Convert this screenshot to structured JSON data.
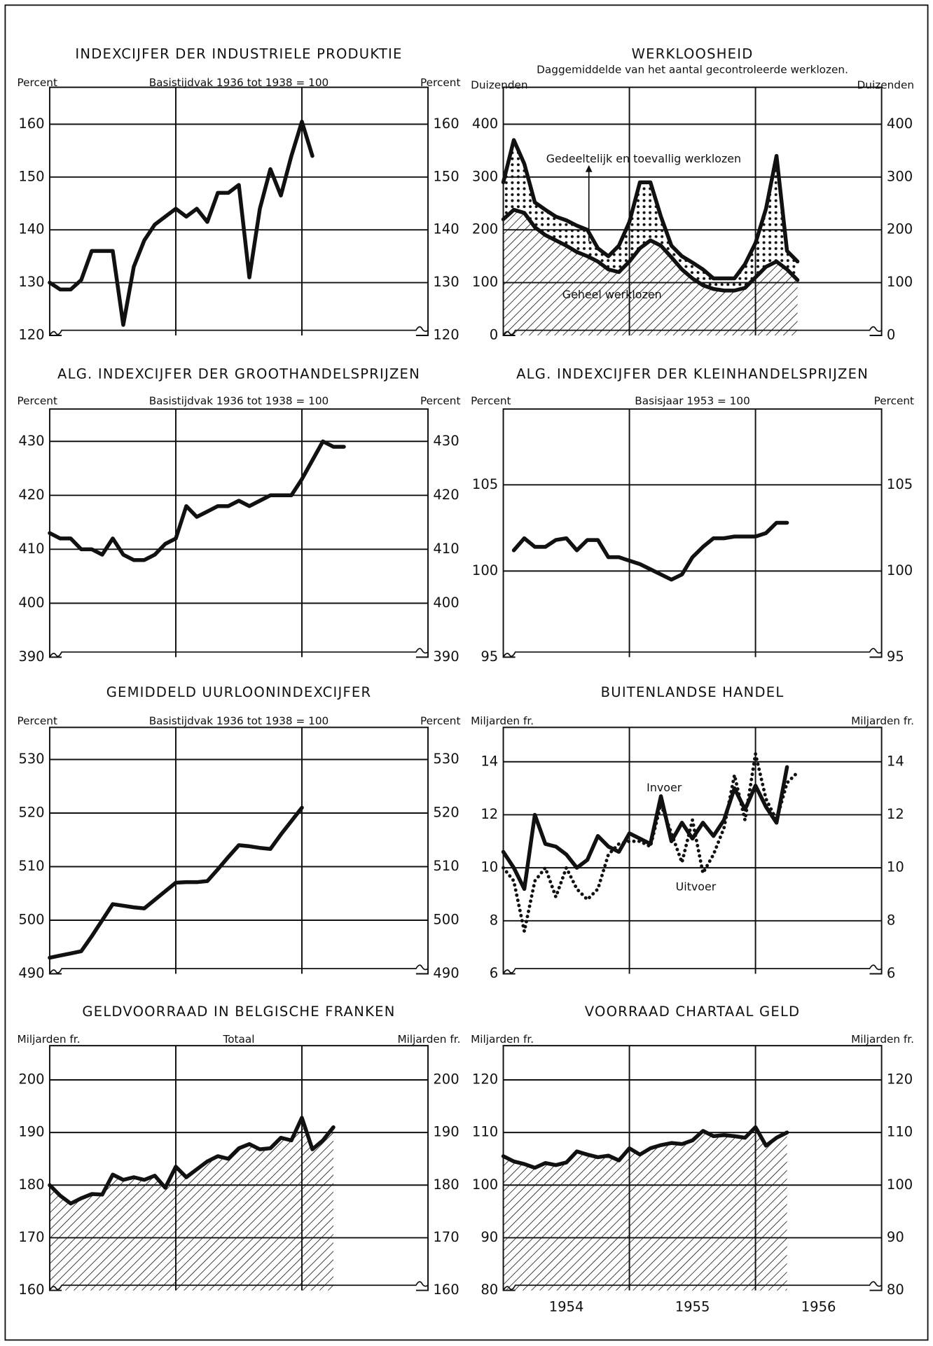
{
  "chart_data": [
    {
      "type": "line",
      "title": "INDEXCIJFER DER INDUSTRIELE PRODUKTIE",
      "subtitle": "Basistijdvak 1936 tot 1938 = 100",
      "ylabel": "Percent",
      "y2label": "Percent",
      "ylim": [
        120,
        167
      ],
      "yticks": [
        120,
        130,
        140,
        150,
        160
      ],
      "series": [
        {
          "color": "#111",
          "style": "solid",
          "values": [
            130,
            128.7,
            128.7,
            130.5,
            136,
            136,
            136,
            122,
            133,
            138,
            141,
            142.5,
            144,
            142.5,
            144,
            141.5,
            147,
            147,
            148.5,
            131,
            144,
            151.5,
            146.5,
            154,
            160.5,
            154
          ]
        }
      ]
    },
    {
      "type": "stacked-area",
      "title": "WERKLOOSHEID",
      "subtitle": "Daggemiddelde van het aantal gecontroleerde werklozen.",
      "ylabel": "Duizenden",
      "y2label": "Duizenden",
      "ylim": [
        0,
        470
      ],
      "yticks": [
        0,
        100,
        200,
        300,
        400
      ],
      "series": [
        {
          "name": "Geheel werklozen",
          "color": "#111",
          "fill": "hatch",
          "values": [
            220,
            238,
            232,
            205,
            190,
            180,
            170,
            158,
            150,
            140,
            125,
            120,
            140,
            165,
            180,
            170,
            148,
            125,
            108,
            95,
            88,
            85,
            85,
            90,
            110,
            130,
            140,
            125,
            105
          ]
        },
        {
          "name": "Gedeeltelijk en toevallig werklozen",
          "color": "#111",
          "fill": "dots",
          "values": [
            70,
            132,
            93,
            47,
            48,
            45,
            48,
            50,
            50,
            25,
            25,
            50,
            75,
            125,
            110,
            55,
            22,
            25,
            30,
            30,
            20,
            23,
            23,
            45,
            65,
            110,
            200,
            35,
            35
          ]
        }
      ]
    },
    {
      "type": "line",
      "title": "ALG. INDEXCIJFER DER GROOTHANDELSPRIJZEN",
      "subtitle": "Basistijdvak 1936 tot 1938 = 100",
      "ylabel": "Percent",
      "y2label": "Percent",
      "ylim": [
        390,
        436
      ],
      "yticks": [
        390,
        400,
        410,
        420,
        430
      ],
      "series": [
        {
          "color": "#111",
          "style": "solid",
          "values": [
            413,
            412,
            412,
            410,
            410,
            409,
            412,
            409,
            408,
            408,
            409,
            411,
            412,
            418,
            416,
            417,
            418,
            418,
            419,
            418,
            419,
            420,
            420,
            420,
            423,
            426.5,
            430,
            429,
            429
          ]
        }
      ]
    },
    {
      "type": "line",
      "title": "ALG. INDEXCIJFER DER KLEINHANDELSPRIJZEN",
      "subtitle": "Basisjaar 1953 = 100",
      "ylabel": "Percent",
      "y2label": "Percent",
      "ylim": [
        95,
        109.4
      ],
      "yticks": [
        95,
        100,
        105
      ],
      "series": [
        {
          "color": "#111",
          "style": "solid",
          "values": [
            null,
            101.2,
            101.9,
            101.4,
            101.4,
            101.8,
            101.9,
            101.2,
            101.8,
            101.8,
            100.8,
            100.8,
            100.6,
            100.4,
            100.1,
            99.8,
            99.5,
            99.8,
            100.8,
            101.4,
            101.9,
            101.9,
            102.0,
            102.0,
            102.0,
            102.2,
            102.8,
            102.8
          ]
        }
      ]
    },
    {
      "type": "line",
      "title": "GEMIDDELD UURLOONINDEXCIJFER",
      "subtitle": "Basistijdvak 1936 tot 1938 = 100",
      "ylabel": "Percent",
      "y2label": "Percent",
      "ylim": [
        490,
        536
      ],
      "yticks": [
        490,
        500,
        510,
        520,
        530
      ],
      "series": [
        {
          "color": "#111",
          "style": "solid",
          "values": [
            493,
            493.4,
            493.8,
            494.2,
            497,
            500,
            503,
            502.7,
            502.4,
            502.2,
            503.8,
            505.4,
            507,
            507.1,
            507.1,
            507.3,
            509.5,
            511.8,
            514,
            513.8,
            513.5,
            513.3,
            516,
            518.5,
            521
          ]
        }
      ]
    },
    {
      "type": "line",
      "title": "BUITENLANDSE HANDEL",
      "ylabel": "Miljarden fr.",
      "y2label": "Miljarden fr.",
      "ylim": [
        6,
        15.3
      ],
      "yticks": [
        6,
        8,
        10,
        12,
        14
      ],
      "series": [
        {
          "name": "Invoer",
          "color": "#111",
          "style": "solid",
          "values": [
            10.6,
            10,
            9.2,
            12,
            10.9,
            10.8,
            10.5,
            10,
            10.3,
            11.2,
            10.8,
            10.6,
            11.3,
            11.1,
            10.9,
            12.7,
            11,
            11.7,
            11.1,
            11.7,
            11.2,
            11.8,
            13,
            12.2,
            13.1,
            12.3,
            11.7,
            13.8
          ]
        },
        {
          "name": "Uitvoer",
          "color": "#111",
          "style": "dotted",
          "values": [
            10,
            9.5,
            7.6,
            9.5,
            10,
            8.9,
            10,
            9.2,
            8.8,
            9.2,
            10.5,
            10.9,
            11,
            11,
            10.8,
            12.4,
            11.3,
            10.2,
            11.8,
            9.8,
            10.5,
            11.5,
            13.5,
            11.8,
            14.3,
            12.6,
            11.8,
            13.2,
            13.6
          ]
        }
      ]
    },
    {
      "type": "area",
      "title": "GELDVOORRAAD IN BELGISCHE FRANKEN",
      "subtitle": "Totaal",
      "ylabel": "Miljarden fr.",
      "y2label": "Miljarden fr.",
      "ylim": [
        160,
        206.5
      ],
      "yticks": [
        160,
        170,
        180,
        190,
        200
      ],
      "series": [
        {
          "color": "#111",
          "style": "solid",
          "fill": "hatch",
          "values": [
            180,
            178,
            176.5,
            177.5,
            178.3,
            178.2,
            182,
            181,
            181.5,
            181,
            181.8,
            179.5,
            183.5,
            181.5,
            183,
            184.5,
            185.5,
            185,
            187,
            187.8,
            186.8,
            187,
            189,
            188.5,
            192.8,
            186.8,
            188.5,
            191
          ]
        }
      ]
    },
    {
      "type": "area",
      "title": "VOORRAAD CHARTAAL GELD",
      "ylabel": "Miljarden fr.",
      "y2label": "Miljarden fr.",
      "ylim": [
        80,
        126.5
      ],
      "yticks": [
        80,
        90,
        100,
        110,
        120
      ],
      "categories": [
        null,
        null,
        null,
        null,
        null,
        null,
        "1954",
        null,
        null,
        null,
        null,
        null,
        null,
        null,
        null,
        null,
        null,
        null,
        "1955",
        null,
        null,
        null,
        null,
        null,
        null,
        null,
        null,
        null,
        null,
        null,
        "1956",
        null,
        null,
        null,
        null,
        null
      ],
      "series": [
        {
          "color": "#111",
          "style": "solid",
          "fill": "hatch",
          "values": [
            105.5,
            104.5,
            104,
            103.3,
            104.2,
            103.8,
            104.3,
            106.4,
            105.8,
            105.3,
            105.6,
            104.7,
            107,
            105.8,
            107,
            107.6,
            108,
            107.8,
            108.5,
            110.3,
            109.3,
            109.5,
            109.3,
            109,
            111,
            107.5,
            109,
            110,
            null,
            null,
            null,
            null,
            null,
            null,
            null,
            null
          ]
        }
      ]
    }
  ]
}
